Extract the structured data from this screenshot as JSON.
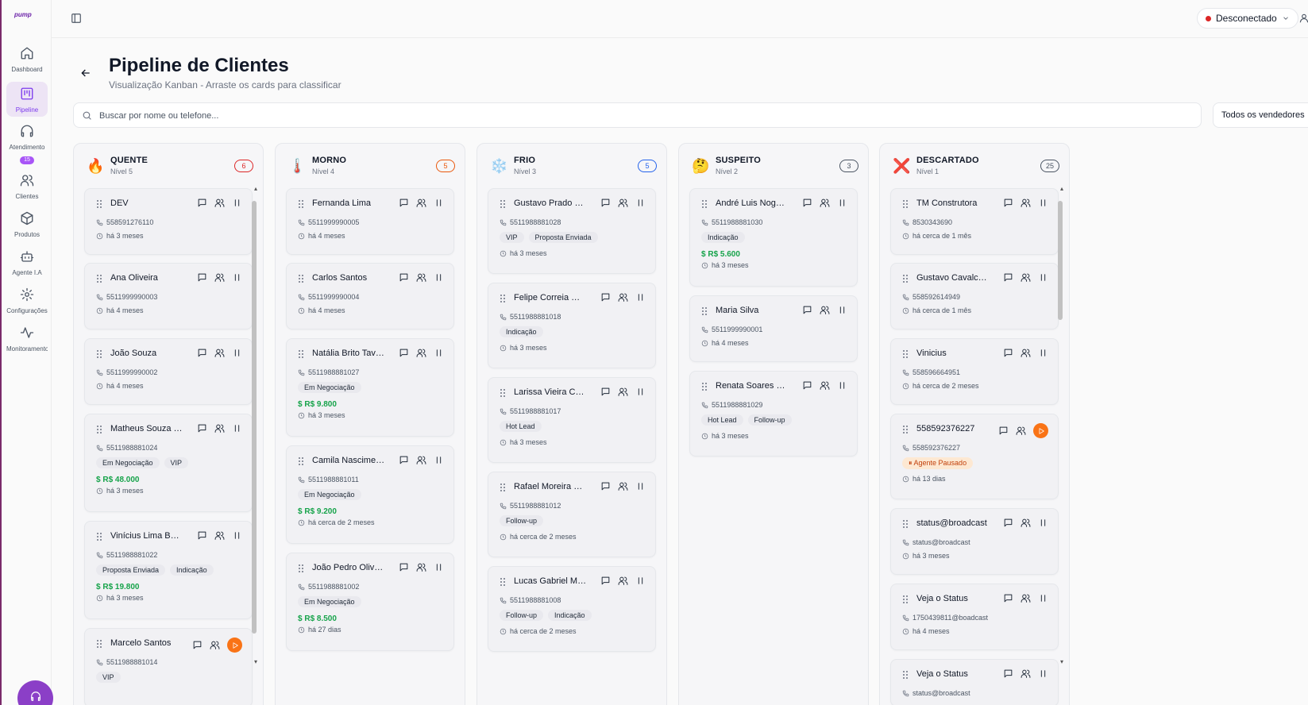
{
  "app": {
    "logo": "pump"
  },
  "sidebar": {
    "items": [
      {
        "label": "Dashboard",
        "icon": "home-icon"
      },
      {
        "label": "Pipeline",
        "icon": "kanban-icon",
        "active": true
      },
      {
        "label": "Atendimento",
        "icon": "headphones-icon",
        "badge": "15"
      },
      {
        "label": "Clientes",
        "icon": "users-icon"
      },
      {
        "label": "Produtos",
        "icon": "package-icon"
      },
      {
        "label": "Agente I.A",
        "icon": "bot-icon"
      },
      {
        "label": "Configurações",
        "icon": "gear-icon"
      },
      {
        "label": "Monitoramento",
        "icon": "activity-icon"
      }
    ]
  },
  "topbar": {
    "status": "Desconectado",
    "status_color": "#dc2626"
  },
  "header": {
    "title": "Pipeline de Clientes",
    "subtitle": "Visualização Kanban - Arraste os cards para classificar"
  },
  "search": {
    "placeholder": "Buscar por nome ou telefone...",
    "value": ""
  },
  "seller_filter": {
    "value": "Todos os vendedores"
  },
  "columns": [
    {
      "title": "QUENTE",
      "level": "Nível 5",
      "count": "6",
      "emoji": "🔥",
      "color": "#dc2626",
      "cards": [
        {
          "name": "DEV",
          "phone": "558591276110",
          "tags": [],
          "value": "",
          "time": "há 3 meses"
        },
        {
          "name": "Ana Oliveira",
          "phone": "5511999990003",
          "tags": [],
          "value": "",
          "time": "há 4 meses"
        },
        {
          "name": "João Souza",
          "phone": "5511999990002",
          "tags": [],
          "value": "",
          "time": "há 4 meses"
        },
        {
          "name": "Matheus Souza Reis",
          "phone": "5511988881024",
          "tags": [
            "Em Negociação",
            "VIP"
          ],
          "value": "R$ 48.000",
          "time": "há 3 meses"
        },
        {
          "name": "Vinícius Lima Barbosa",
          "phone": "5511988881022",
          "tags": [
            "Proposta Enviada",
            "Indicação"
          ],
          "value": "R$ 19.800",
          "time": "há 3 meses"
        },
        {
          "name": "Marcelo Santos",
          "phone": "5511988881014",
          "tags": [
            "VIP"
          ],
          "value": "",
          "time": "",
          "paused": true
        }
      ]
    },
    {
      "title": "MORNO",
      "level": "Nível 4",
      "count": "5",
      "emoji": "🌡️",
      "color": "#ea580c",
      "cards": [
        {
          "name": "Fernanda Lima",
          "phone": "5511999990005",
          "tags": [],
          "value": "",
          "time": "há 4 meses"
        },
        {
          "name": "Carlos Santos",
          "phone": "5511999990004",
          "tags": [],
          "value": "",
          "time": "há 4 meses"
        },
        {
          "name": "Natália Brito Tavares",
          "phone": "5511988881027",
          "tags": [
            "Em Negociação"
          ],
          "value": "R$ 9.800",
          "time": "há 3 meses"
        },
        {
          "name": "Camila Nascimento",
          "phone": "5511988881011",
          "tags": [
            "Em Negociação"
          ],
          "value": "R$ 9.200",
          "time": "há cerca de 2 meses"
        },
        {
          "name": "João Pedro Oliveira",
          "phone": "5511988881002",
          "tags": [
            "Em Negociação"
          ],
          "value": "R$ 8.500",
          "time": "há 27 dias"
        }
      ]
    },
    {
      "title": "FRIO",
      "level": "Nível 3",
      "count": "5",
      "emoji": "❄️",
      "color": "#2563eb",
      "cards": [
        {
          "name": "Gustavo Prado Silva",
          "phone": "5511988881028",
          "tags": [
            "VIP",
            "Proposta Enviada"
          ],
          "value": "",
          "time": "há 3 meses"
        },
        {
          "name": "Felipe Correia Moura",
          "phone": "5511988881018",
          "tags": [
            "Indicação"
          ],
          "value": "",
          "time": "há 3 meses"
        },
        {
          "name": "Larissa Vieira Cunha",
          "phone": "5511988881017",
          "tags": [
            "Hot Lead"
          ],
          "value": "",
          "time": "há 3 meses"
        },
        {
          "name": "Rafael Moreira Gomes",
          "phone": "5511988881012",
          "tags": [
            "Follow-up"
          ],
          "value": "",
          "time": "há cerca de 2 meses"
        },
        {
          "name": "Lucas Gabriel Martins",
          "phone": "5511988881008",
          "tags": [
            "Follow-up",
            "Indicação"
          ],
          "value": "",
          "time": "há cerca de 2 meses"
        }
      ]
    },
    {
      "title": "SUSPEITO",
      "level": "Nível 2",
      "count": "3",
      "emoji": "🤔",
      "color": "#4b5563",
      "cards": [
        {
          "name": "André Luis Nogueira",
          "phone": "5511988881030",
          "tags": [
            "Indicação"
          ],
          "value": "R$ 5.600",
          "time": "há 3 meses"
        },
        {
          "name": "Maria Silva",
          "phone": "5511999990001",
          "tags": [],
          "value": "",
          "time": "há 4 meses"
        },
        {
          "name": "Renata Soares Martins",
          "phone": "5511988881029",
          "tags": [
            "Hot Lead",
            "Follow-up"
          ],
          "value": "",
          "time": "há 3 meses"
        }
      ]
    },
    {
      "title": "DESCARTADO",
      "level": "Nível 1",
      "count": "25",
      "emoji": "❌",
      "color": "#4b5563",
      "cards": [
        {
          "name": "TM Construtora",
          "phone": "8530343690",
          "tags": [],
          "value": "",
          "time": "há cerca de 1 mês"
        },
        {
          "name": "Gustavo Cavalcante",
          "phone": "558592614949",
          "tags": [],
          "value": "",
          "time": "há cerca de 1 mês"
        },
        {
          "name": "Vinicius",
          "phone": "558596664951",
          "tags": [],
          "value": "",
          "time": "há cerca de 2 meses"
        },
        {
          "name": "558592376227",
          "phone": "558592376227",
          "tags": [],
          "paused_tag": "Agente Pausado",
          "value": "",
          "time": "há 13 dias",
          "paused": true
        },
        {
          "name": "status@broadcast",
          "phone": "status@broadcast",
          "tags": [],
          "value": "",
          "time": "há 3 meses"
        },
        {
          "name": "Veja o Status",
          "phone": "1750439811@boadcast",
          "tags": [],
          "value": "",
          "time": "há 4 meses"
        },
        {
          "name": "Veja o Status",
          "phone": "status@broadcast",
          "tags": [],
          "value": "",
          "time": ""
        }
      ]
    }
  ]
}
